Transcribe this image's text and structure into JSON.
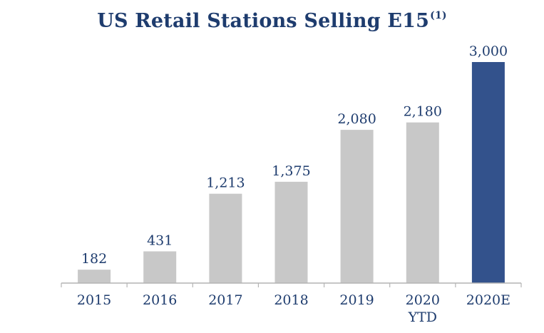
{
  "chart_data": {
    "type": "bar",
    "title": "US Retail Stations Selling E15",
    "title_footnote": "(1)",
    "categories": [
      "2015",
      "2016",
      "2017",
      "2018",
      "2019",
      "2020\nYTD",
      "2020E"
    ],
    "values": [
      182,
      431,
      1213,
      1375,
      2080,
      2180,
      3000
    ],
    "data_labels": [
      "182",
      "431",
      "1,213",
      "1,375",
      "2,080",
      "2,180",
      "3,000"
    ],
    "xlabel": "",
    "ylabel": "",
    "ylim": [
      0,
      3000
    ],
    "grid": false,
    "legend": "none",
    "colors": {
      "default_bar": "#c8c8c8",
      "highlight_bar": "#33528c",
      "text": "#1e3c6e",
      "axis": "#b4b4b4"
    },
    "highlight_index": 6
  }
}
